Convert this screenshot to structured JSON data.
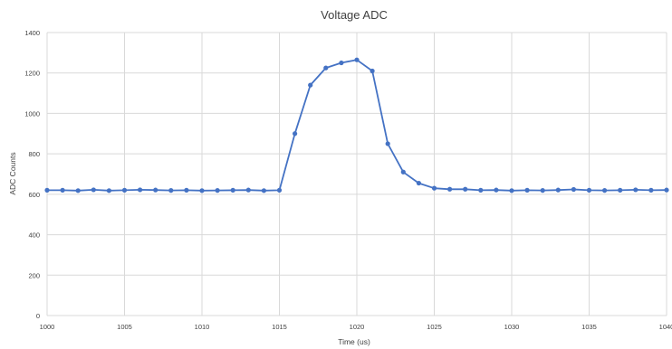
{
  "chart_data": {
    "type": "line",
    "title": "Voltage ADC",
    "xlabel": "Time (us)",
    "ylabel": "ADC Counts",
    "xlim": [
      1000,
      1040
    ],
    "ylim": [
      0,
      1400
    ],
    "x_ticks": [
      "1000",
      "1005",
      "1010",
      "1015",
      "1020",
      "1025",
      "1030",
      "1035",
      "1040"
    ],
    "y_ticks": [
      "0",
      "200",
      "400",
      "600",
      "800",
      "1000",
      "1200",
      "1400"
    ],
    "grid": true,
    "legend": "none",
    "series_color": "#4472C4",
    "series": [
      {
        "x": [
          1000,
          1001,
          1002,
          1003,
          1004,
          1005,
          1006,
          1007,
          1008,
          1009,
          1010,
          1011,
          1012,
          1013,
          1014,
          1015,
          1016,
          1017,
          1018,
          1019,
          1020,
          1021,
          1022,
          1023,
          1024,
          1025,
          1026,
          1027,
          1028,
          1029,
          1030,
          1031,
          1032,
          1033,
          1034,
          1035,
          1036,
          1037,
          1038,
          1039,
          1040
        ],
        "values": [
          620,
          620,
          618,
          622,
          618,
          620,
          622,
          621,
          619,
          620,
          618,
          619,
          620,
          621,
          618,
          620,
          900,
          1140,
          1225,
          1250,
          1265,
          1210,
          850,
          710,
          655,
          630,
          625,
          625,
          620,
          621,
          618,
          620,
          619,
          621,
          624,
          620,
          619,
          620,
          622,
          620,
          621
        ]
      }
    ]
  }
}
